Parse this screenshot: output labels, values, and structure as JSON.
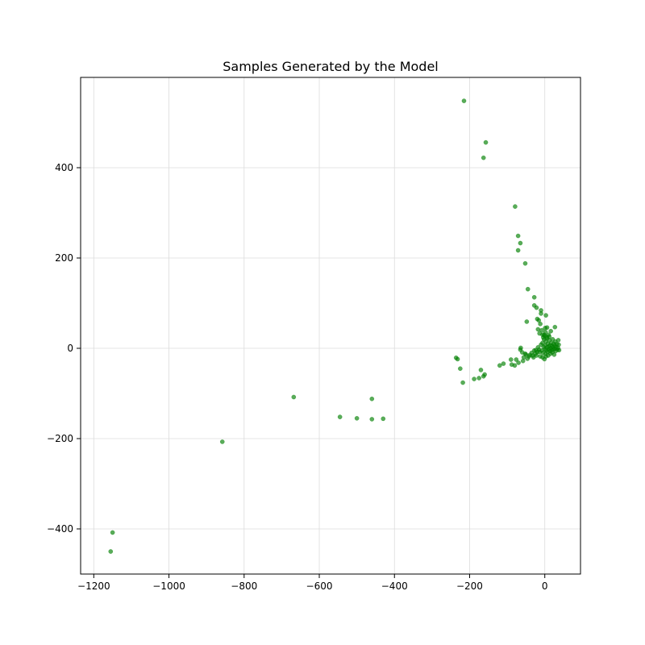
{
  "chart_data": {
    "type": "scatter",
    "title": "Samples Generated by the Model",
    "xlabel": "",
    "ylabel": "",
    "xlim": [
      -1235,
      95
    ],
    "ylim": [
      -500,
      600
    ],
    "xticks": [
      -1200,
      -1000,
      -800,
      -600,
      -400,
      -200,
      0
    ],
    "yticks": [
      -400,
      -200,
      0,
      200,
      400
    ],
    "grid": true,
    "colors": {
      "point": "#008000",
      "grid": "#dcdcdc",
      "axis": "#000000"
    },
    "series": [
      {
        "points": [
          [
            -1155,
            -450
          ],
          [
            -1150,
            -408
          ],
          [
            -858,
            -207
          ],
          [
            -668,
            -108
          ],
          [
            -545,
            -152
          ],
          [
            -500,
            -155
          ],
          [
            -460,
            -157
          ],
          [
            -460,
            -112
          ],
          [
            -430,
            -156
          ],
          [
            -215,
            548
          ],
          [
            -157,
            456
          ],
          [
            -163,
            422
          ],
          [
            -79,
            314
          ],
          [
            -71,
            249
          ],
          [
            -65,
            233
          ],
          [
            -71,
            217
          ],
          [
            -52,
            188
          ],
          [
            -45,
            131
          ],
          [
            -28,
            113
          ],
          [
            -22,
            90
          ],
          [
            -28,
            95
          ],
          [
            -10,
            84
          ],
          [
            -10,
            77
          ],
          [
            3,
            73
          ],
          [
            -48,
            59
          ],
          [
            -20,
            65
          ],
          [
            -16,
            62
          ],
          [
            -12,
            54
          ],
          [
            -18,
            42
          ],
          [
            -8,
            40
          ],
          [
            -14,
            33
          ],
          [
            -6,
            30
          ],
          [
            1,
            45
          ],
          [
            6,
            46
          ],
          [
            16,
            38
          ],
          [
            27,
            47
          ],
          [
            -236,
            -21
          ],
          [
            -232,
            -24
          ],
          [
            -225,
            -45
          ],
          [
            -218,
            -76
          ],
          [
            -188,
            -68
          ],
          [
            -175,
            -66
          ],
          [
            -170,
            -48
          ],
          [
            -163,
            -62
          ],
          [
            -160,
            -58
          ],
          [
            -120,
            -38
          ],
          [
            -110,
            -34
          ],
          [
            -90,
            -25
          ],
          [
            -88,
            -36
          ],
          [
            -80,
            -38
          ],
          [
            -76,
            -25
          ],
          [
            -70,
            -32
          ],
          [
            -65,
            -3
          ],
          [
            -60,
            -9
          ],
          [
            -64,
            1
          ],
          [
            -56,
            -20
          ],
          [
            -50,
            -14
          ],
          [
            -46,
            -23
          ],
          [
            -40,
            -15
          ],
          [
            -35,
            -10
          ],
          [
            -30,
            -20
          ],
          [
            -28,
            -5
          ],
          [
            -25,
            -12
          ],
          [
            -22,
            -16
          ],
          [
            -20,
            -8
          ],
          [
            -18,
            2
          ],
          [
            -15,
            -3
          ],
          [
            -12,
            -18
          ],
          [
            -10,
            8
          ],
          [
            -8,
            -5
          ],
          [
            -6,
            12
          ],
          [
            -5,
            -10
          ],
          [
            -3,
            3
          ],
          [
            -2,
            20
          ],
          [
            0,
            -2
          ],
          [
            1,
            6
          ],
          [
            2,
            -12
          ],
          [
            3,
            15
          ],
          [
            4,
            -4
          ],
          [
            5,
            25
          ],
          [
            6,
            2
          ],
          [
            7,
            -8
          ],
          [
            8,
            10
          ],
          [
            9,
            -16
          ],
          [
            10,
            4
          ],
          [
            11,
            -2
          ],
          [
            12,
            18
          ],
          [
            13,
            -6
          ],
          [
            14,
            7
          ],
          [
            15,
            -12
          ],
          [
            16,
            0
          ],
          [
            17,
            12
          ],
          [
            18,
            -4
          ],
          [
            19,
            5
          ],
          [
            20,
            -9
          ],
          [
            21,
            20
          ],
          [
            22,
            2
          ],
          [
            23,
            -3
          ],
          [
            24,
            10
          ],
          [
            25,
            -14
          ],
          [
            26,
            6
          ],
          [
            27,
            -1
          ],
          [
            28,
            15
          ],
          [
            29,
            -6
          ],
          [
            30,
            3
          ],
          [
            32,
            9
          ],
          [
            34,
            -3
          ],
          [
            36,
            18
          ],
          [
            37,
            8
          ],
          [
            38,
            -4
          ],
          [
            35,
            1
          ],
          [
            -2,
            30
          ],
          [
            2,
            36
          ],
          [
            -4,
            24
          ],
          [
            0,
            28
          ],
          [
            6,
            22
          ],
          [
            10,
            30
          ],
          [
            12,
            26
          ],
          [
            -6,
            -20
          ],
          [
            -1,
            -24
          ],
          [
            3,
            -18
          ],
          [
            -14,
            -8
          ],
          [
            -24,
            -4
          ],
          [
            -32,
            -16
          ],
          [
            -42,
            -18
          ],
          [
            -52,
            -12
          ],
          [
            -58,
            -28
          ]
        ]
      }
    ]
  }
}
